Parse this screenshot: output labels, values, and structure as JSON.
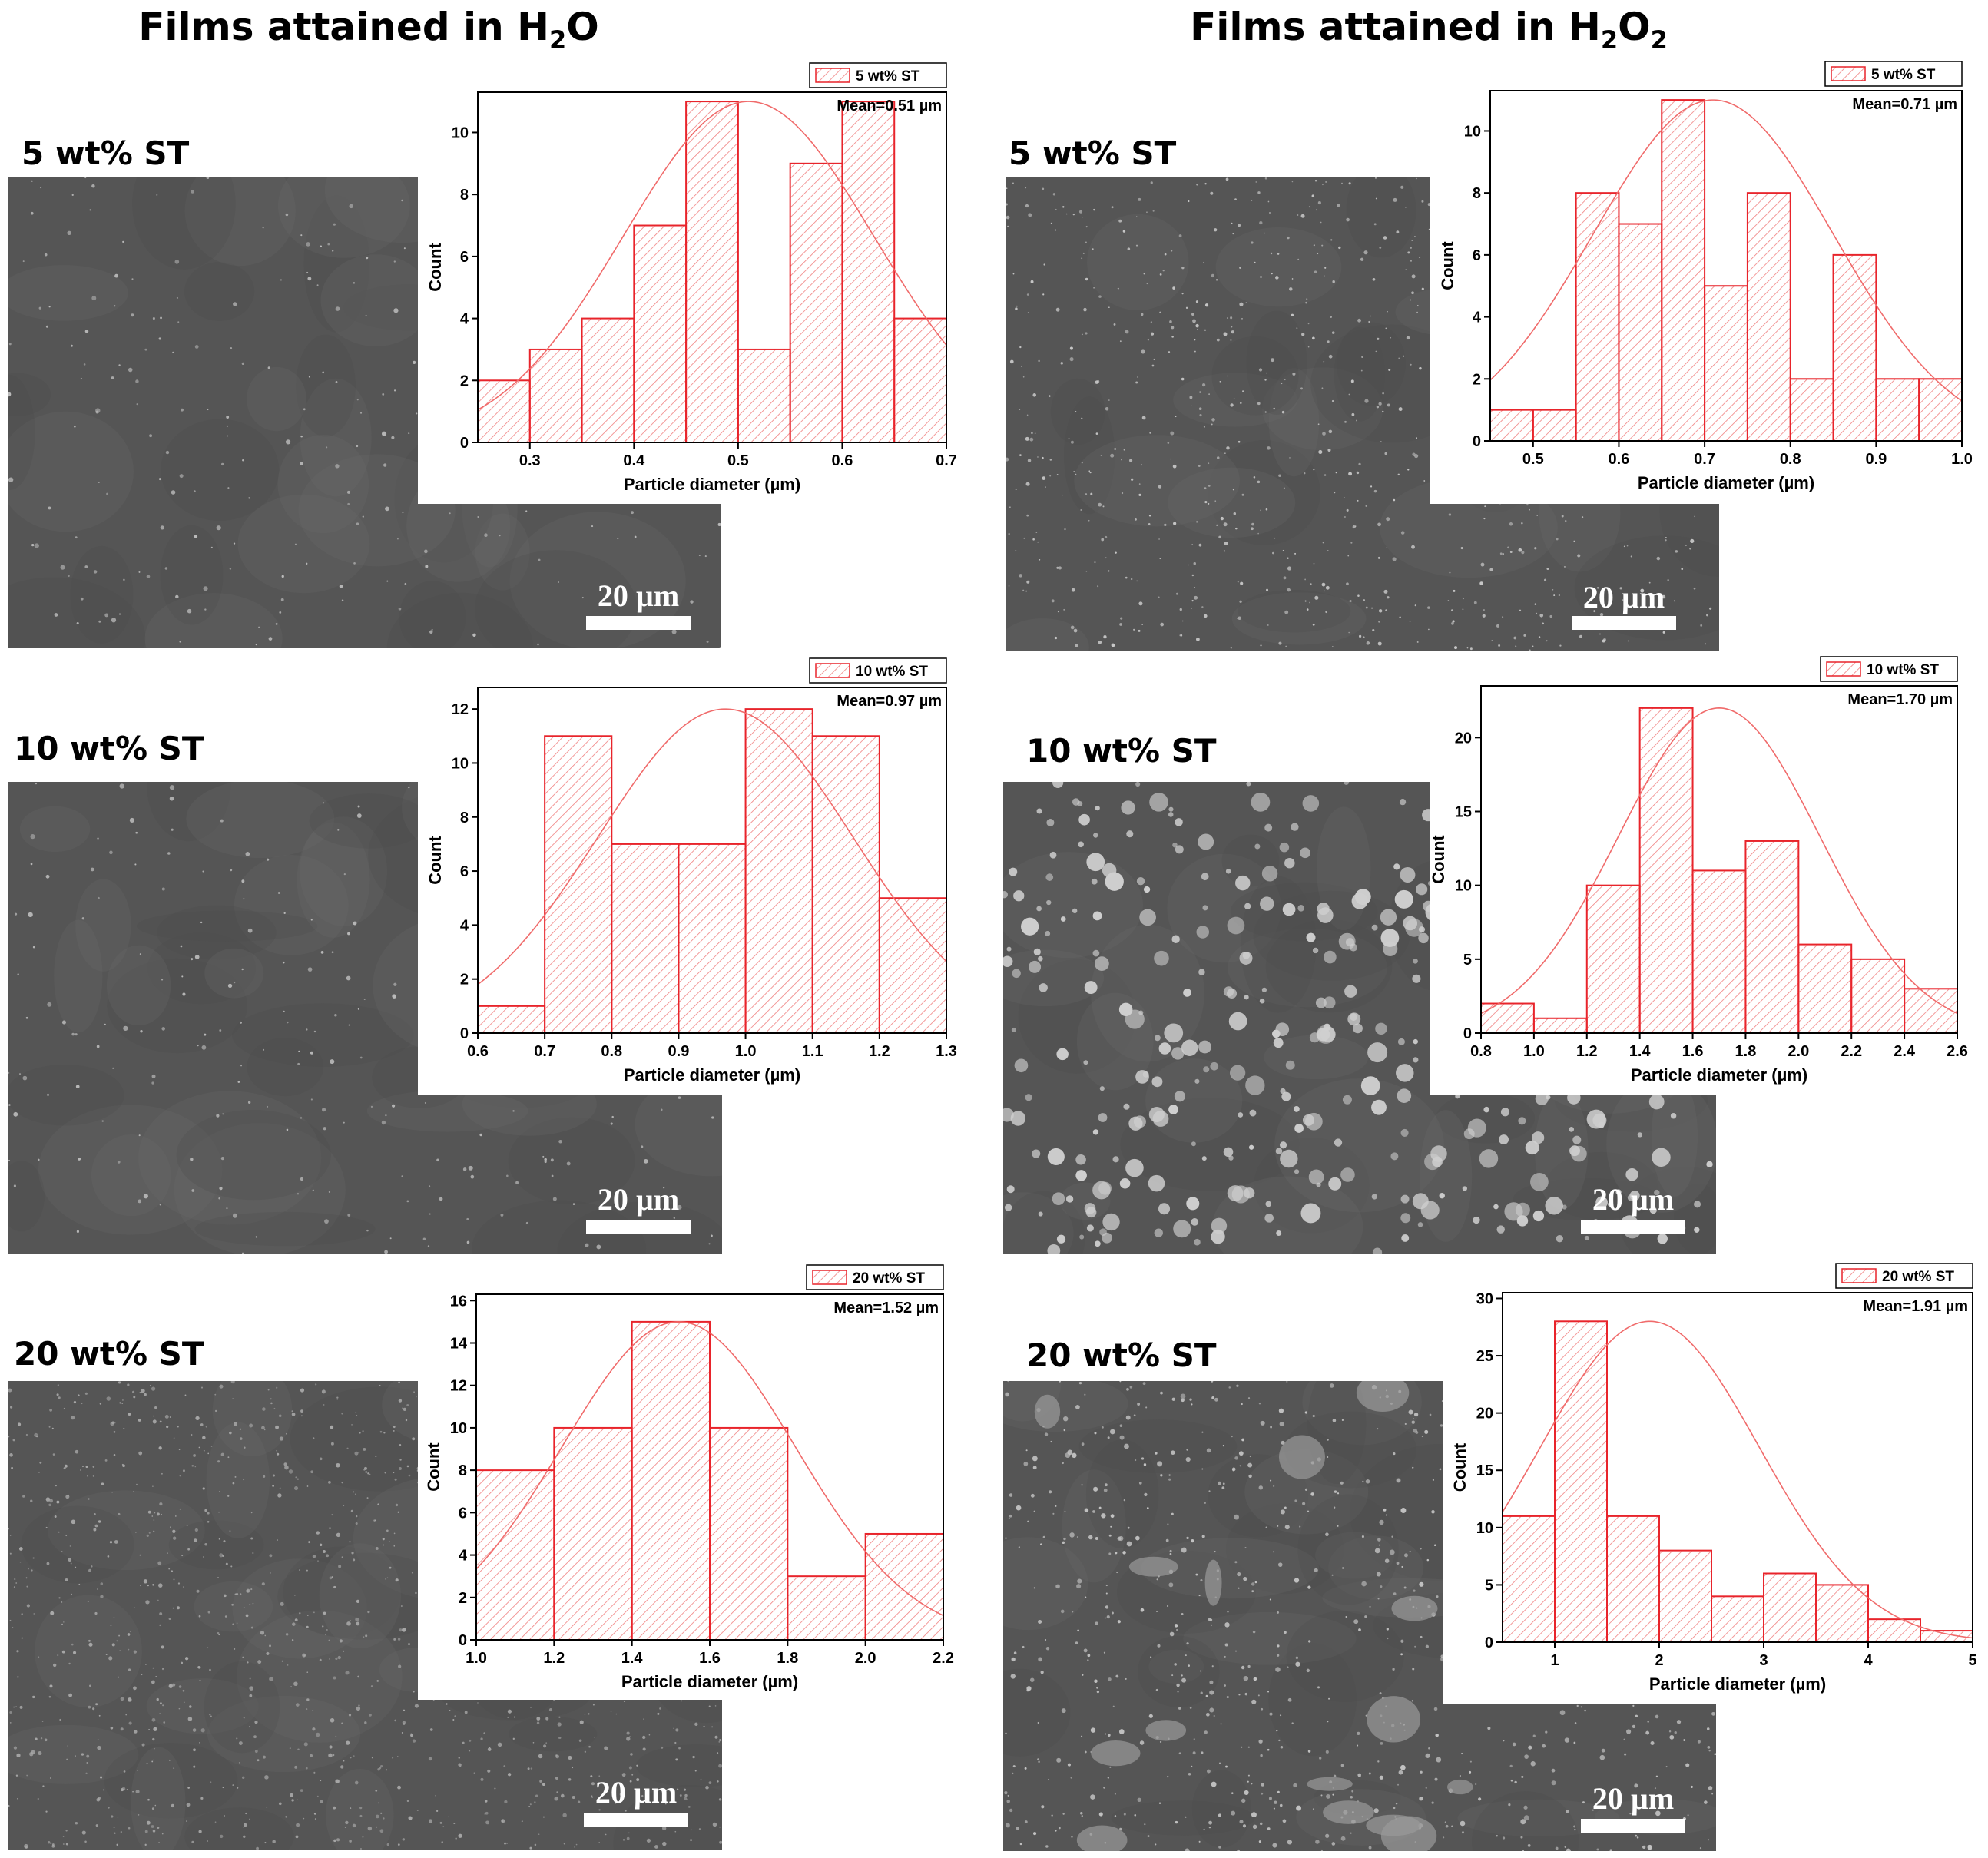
{
  "columns": [
    {
      "title_main": "Films attained in H",
      "title_sub": "2",
      "title_tail": "O"
    },
    {
      "title_main": "Films attained in H",
      "title_sub": "2",
      "title_tail": "O",
      "title_sub2": "2"
    }
  ],
  "scale_label": "20 µm",
  "colors": {
    "bar_stroke": "#e8242b",
    "bar_hatch": "#f08080",
    "fit_line": "#f06b6b",
    "sem_bg": "#555555"
  },
  "chart_data": [
    {
      "type": "bar",
      "panel": "H2O",
      "row_label": "5 wt% ST",
      "legend": "5 wt% ST",
      "mean_text": "Mean=0.51 µm",
      "xlabel": "Particle diameter (µm)",
      "ylabel": "Count",
      "bin_edges": [
        0.25,
        0.3,
        0.35,
        0.4,
        0.45,
        0.5,
        0.55,
        0.6,
        0.65,
        0.7
      ],
      "values": [
        2,
        3,
        4,
        7,
        11,
        3,
        9,
        11,
        4
      ],
      "xlim": [
        0.25,
        0.7
      ],
      "ylim": [
        0,
        11.3
      ],
      "xticks": [
        0.3,
        0.4,
        0.5,
        0.6,
        0.7
      ],
      "xticklabels": [
        "0.3",
        "0.4",
        "0.5",
        "0.6",
        "0.7"
      ],
      "yticks": [
        0,
        2,
        4,
        6,
        8,
        10
      ],
      "yticklabels": [
        "0",
        "2",
        "4",
        "6",
        "8",
        "10"
      ],
      "fit": {
        "mean": 0.51,
        "sd": 0.12,
        "peak": 11
      }
    },
    {
      "type": "bar",
      "panel": "H2O2",
      "row_label": "5 wt% ST",
      "legend": "5 wt% ST",
      "mean_text": "Mean=0.71 µm",
      "xlabel": "Particle diameter (µm)",
      "ylabel": "Count",
      "bin_edges": [
        0.45,
        0.5,
        0.55,
        0.6,
        0.65,
        0.7,
        0.75,
        0.8,
        0.85,
        0.9,
        0.95,
        1.0
      ],
      "values": [
        1,
        1,
        8,
        7,
        11,
        5,
        8,
        2,
        6,
        2,
        2
      ],
      "xlim": [
        0.45,
        1.0
      ],
      "ylim": [
        0,
        11.3
      ],
      "xticks": [
        0.5,
        0.6,
        0.7,
        0.8,
        0.9,
        1.0
      ],
      "xticklabels": [
        "0.5",
        "0.6",
        "0.7",
        "0.8",
        "0.9",
        "1.0"
      ],
      "yticks": [
        0,
        2,
        4,
        6,
        8,
        10
      ],
      "yticklabels": [
        "0",
        "2",
        "4",
        "6",
        "8",
        "10"
      ],
      "fit": {
        "mean": 0.71,
        "sd": 0.14,
        "peak": 11
      }
    },
    {
      "type": "bar",
      "panel": "H2O",
      "row_label": "10 wt% ST",
      "legend": "10 wt% ST",
      "mean_text": "Mean=0.97 µm",
      "xlabel": "Particle diameter (µm)",
      "ylabel": "Count",
      "bin_edges": [
        0.6,
        0.7,
        0.8,
        0.9,
        1.0,
        1.1,
        1.2,
        1.3
      ],
      "values": [
        1,
        11,
        7,
        7,
        12,
        11,
        5
      ],
      "xlim": [
        0.6,
        1.3
      ],
      "ylim": [
        0,
        12.8
      ],
      "xticks": [
        0.6,
        0.7,
        0.8,
        0.9,
        1.0,
        1.1,
        1.2,
        1.3
      ],
      "xticklabels": [
        "0.6",
        "0.7",
        "0.8",
        "0.9",
        "1.0",
        "1.1",
        "1.2",
        "1.3"
      ],
      "yticks": [
        0,
        2,
        4,
        6,
        8,
        10,
        12
      ],
      "yticklabels": [
        "0",
        "2",
        "4",
        "6",
        "8",
        "10",
        "12"
      ],
      "fit": {
        "mean": 0.97,
        "sd": 0.19,
        "peak": 12
      }
    },
    {
      "type": "bar",
      "panel": "H2O2",
      "row_label": "10 wt% ST",
      "legend": "10 wt% ST",
      "mean_text": "Mean=1.70 µm",
      "xlabel": "Particle diameter (µm)",
      "ylabel": "Count",
      "bin_edges": [
        0.8,
        1.0,
        1.2,
        1.4,
        1.6,
        1.8,
        2.0,
        2.2,
        2.4,
        2.6
      ],
      "values": [
        2,
        1,
        10,
        22,
        11,
        13,
        6,
        5,
        3
      ],
      "xlim": [
        0.8,
        2.6
      ],
      "ylim": [
        0,
        23.5
      ],
      "xticks": [
        0.8,
        1.0,
        1.2,
        1.4,
        1.6,
        1.8,
        2.0,
        2.2,
        2.4,
        2.6
      ],
      "xticklabels": [
        "0.8",
        "1.0",
        "1.2",
        "1.4",
        "1.6",
        "1.8",
        "2.0",
        "2.2",
        "2.4",
        "2.6"
      ],
      "yticks": [
        0,
        5,
        10,
        15,
        20
      ],
      "yticklabels": [
        "0",
        "5",
        "10",
        "15",
        "20"
      ],
      "fit": {
        "mean": 1.7,
        "sd": 0.38,
        "peak": 22
      }
    },
    {
      "type": "bar",
      "panel": "H2O",
      "row_label": "20 wt% ST",
      "legend": "20 wt% ST",
      "mean_text": "Mean=1.52 µm",
      "xlabel": "Particle diameter (µm)",
      "ylabel": "Count",
      "bin_edges": [
        1.0,
        1.2,
        1.4,
        1.6,
        1.8,
        2.0,
        2.2
      ],
      "values": [
        8,
        10,
        15,
        10,
        3,
        5
      ],
      "xlim": [
        1.0,
        2.2
      ],
      "ylim": [
        0,
        16.3
      ],
      "xticks": [
        1.0,
        1.2,
        1.4,
        1.6,
        1.8,
        2.0,
        2.2
      ],
      "xticklabels": [
        "1.0",
        "1.2",
        "1.4",
        "1.6",
        "1.8",
        "2.0",
        "2.2"
      ],
      "yticks": [
        0,
        2,
        4,
        6,
        8,
        10,
        12,
        14,
        16
      ],
      "yticklabels": [
        "0",
        "2",
        "4",
        "6",
        "8",
        "10",
        "12",
        "14",
        "16"
      ],
      "fit": {
        "mean": 1.52,
        "sd": 0.3,
        "peak": 15
      }
    },
    {
      "type": "bar",
      "panel": "H2O2",
      "row_label": "20 wt% ST",
      "legend": "20 wt% ST",
      "mean_text": "Mean=1.91 µm",
      "xlabel": "Particle diameter (µm)",
      "ylabel": "Count",
      "bin_edges": [
        0.5,
        1.0,
        1.5,
        2.0,
        2.5,
        3.0,
        3.5,
        4.0,
        4.5,
        5.0
      ],
      "values": [
        11,
        28,
        11,
        8,
        4,
        6,
        5,
        2,
        1
      ],
      "xlim": [
        0.5,
        5.0
      ],
      "ylim": [
        0,
        30.5
      ],
      "xticks": [
        1,
        2,
        3,
        4,
        5
      ],
      "xticklabels": [
        "1",
        "2",
        "3",
        "4",
        "5"
      ],
      "yticks": [
        0,
        5,
        10,
        15,
        20,
        25,
        30
      ],
      "yticklabels": [
        "0",
        "5",
        "10",
        "15",
        "20",
        "25",
        "30"
      ],
      "fit": {
        "mean": 1.91,
        "sd": 1.05,
        "peak": 28
      }
    }
  ]
}
